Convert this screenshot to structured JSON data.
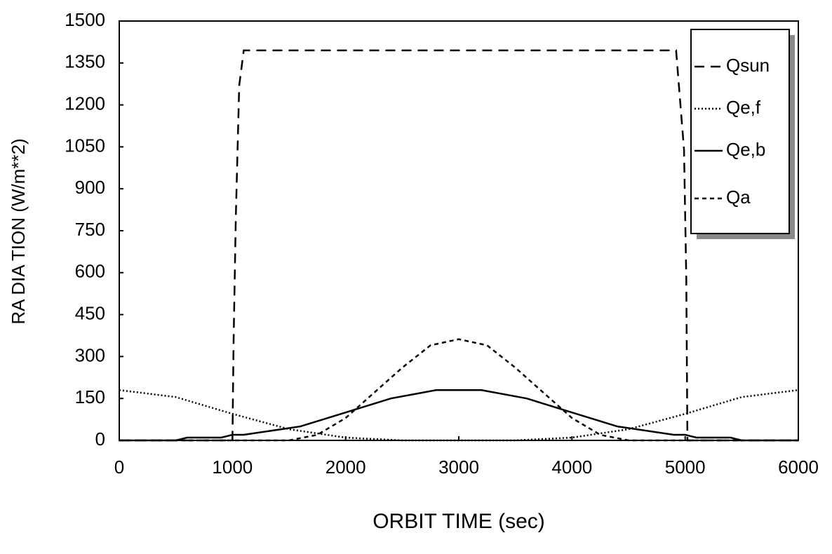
{
  "chart_data": {
    "type": "line",
    "x_label": "ORBIT TIME (sec)",
    "y_label": "RA DIA TION (W/m**2)",
    "xlim": [
      0,
      6000
    ],
    "xticks": [
      0,
      1000,
      2000,
      3000,
      4000,
      5000,
      6000
    ],
    "ylim": [
      0,
      1500
    ],
    "yticks": [
      0,
      150,
      300,
      450,
      600,
      750,
      900,
      1050,
      1200,
      1350,
      1500
    ],
    "legend": "upper right",
    "series": [
      {
        "name": "Qsun",
        "color": "#000000",
        "dash": "long-dash",
        "x": [
          0,
          1000,
          1010,
          1030,
          1060,
          1100,
          4920,
          4990,
          5010,
          5020,
          6000
        ],
        "values": [
          0,
          0,
          350,
          800,
          1270,
          1395,
          1395,
          1040,
          580,
          0,
          0
        ]
      },
      {
        "name": "Qe,f",
        "color": "#000000",
        "dash": "dotted",
        "x": [
          0,
          500,
          1000,
          1500,
          2000,
          2500,
          3500,
          4000,
          4500,
          5000,
          5500,
          6000
        ],
        "values": [
          180,
          155,
          95,
          40,
          10,
          0,
          0,
          10,
          40,
          95,
          155,
          180
        ]
      },
      {
        "name": "Qe,b",
        "color": "#000000",
        "dash": "solid",
        "x": [
          0,
          500,
          600,
          900,
          1000,
          1100,
          1600,
          2000,
          2400,
          2800,
          3200,
          3600,
          4000,
          4400,
          4900,
          5000,
          5100,
          5400,
          5500,
          6000
        ],
        "values": [
          0,
          0,
          10,
          10,
          20,
          20,
          50,
          100,
          150,
          180,
          180,
          150,
          100,
          50,
          20,
          20,
          10,
          10,
          0,
          0
        ]
      },
      {
        "name": "Qa",
        "color": "#000000",
        "dash": "short-dash",
        "x": [
          0,
          1500,
          1750,
          2000,
          2250,
          2500,
          2750,
          3000,
          3250,
          3500,
          3750,
          4000,
          4250,
          4500,
          6000
        ],
        "values": [
          0,
          0,
          20,
          80,
          170,
          260,
          340,
          362,
          340,
          260,
          170,
          80,
          20,
          0,
          0
        ]
      }
    ]
  }
}
